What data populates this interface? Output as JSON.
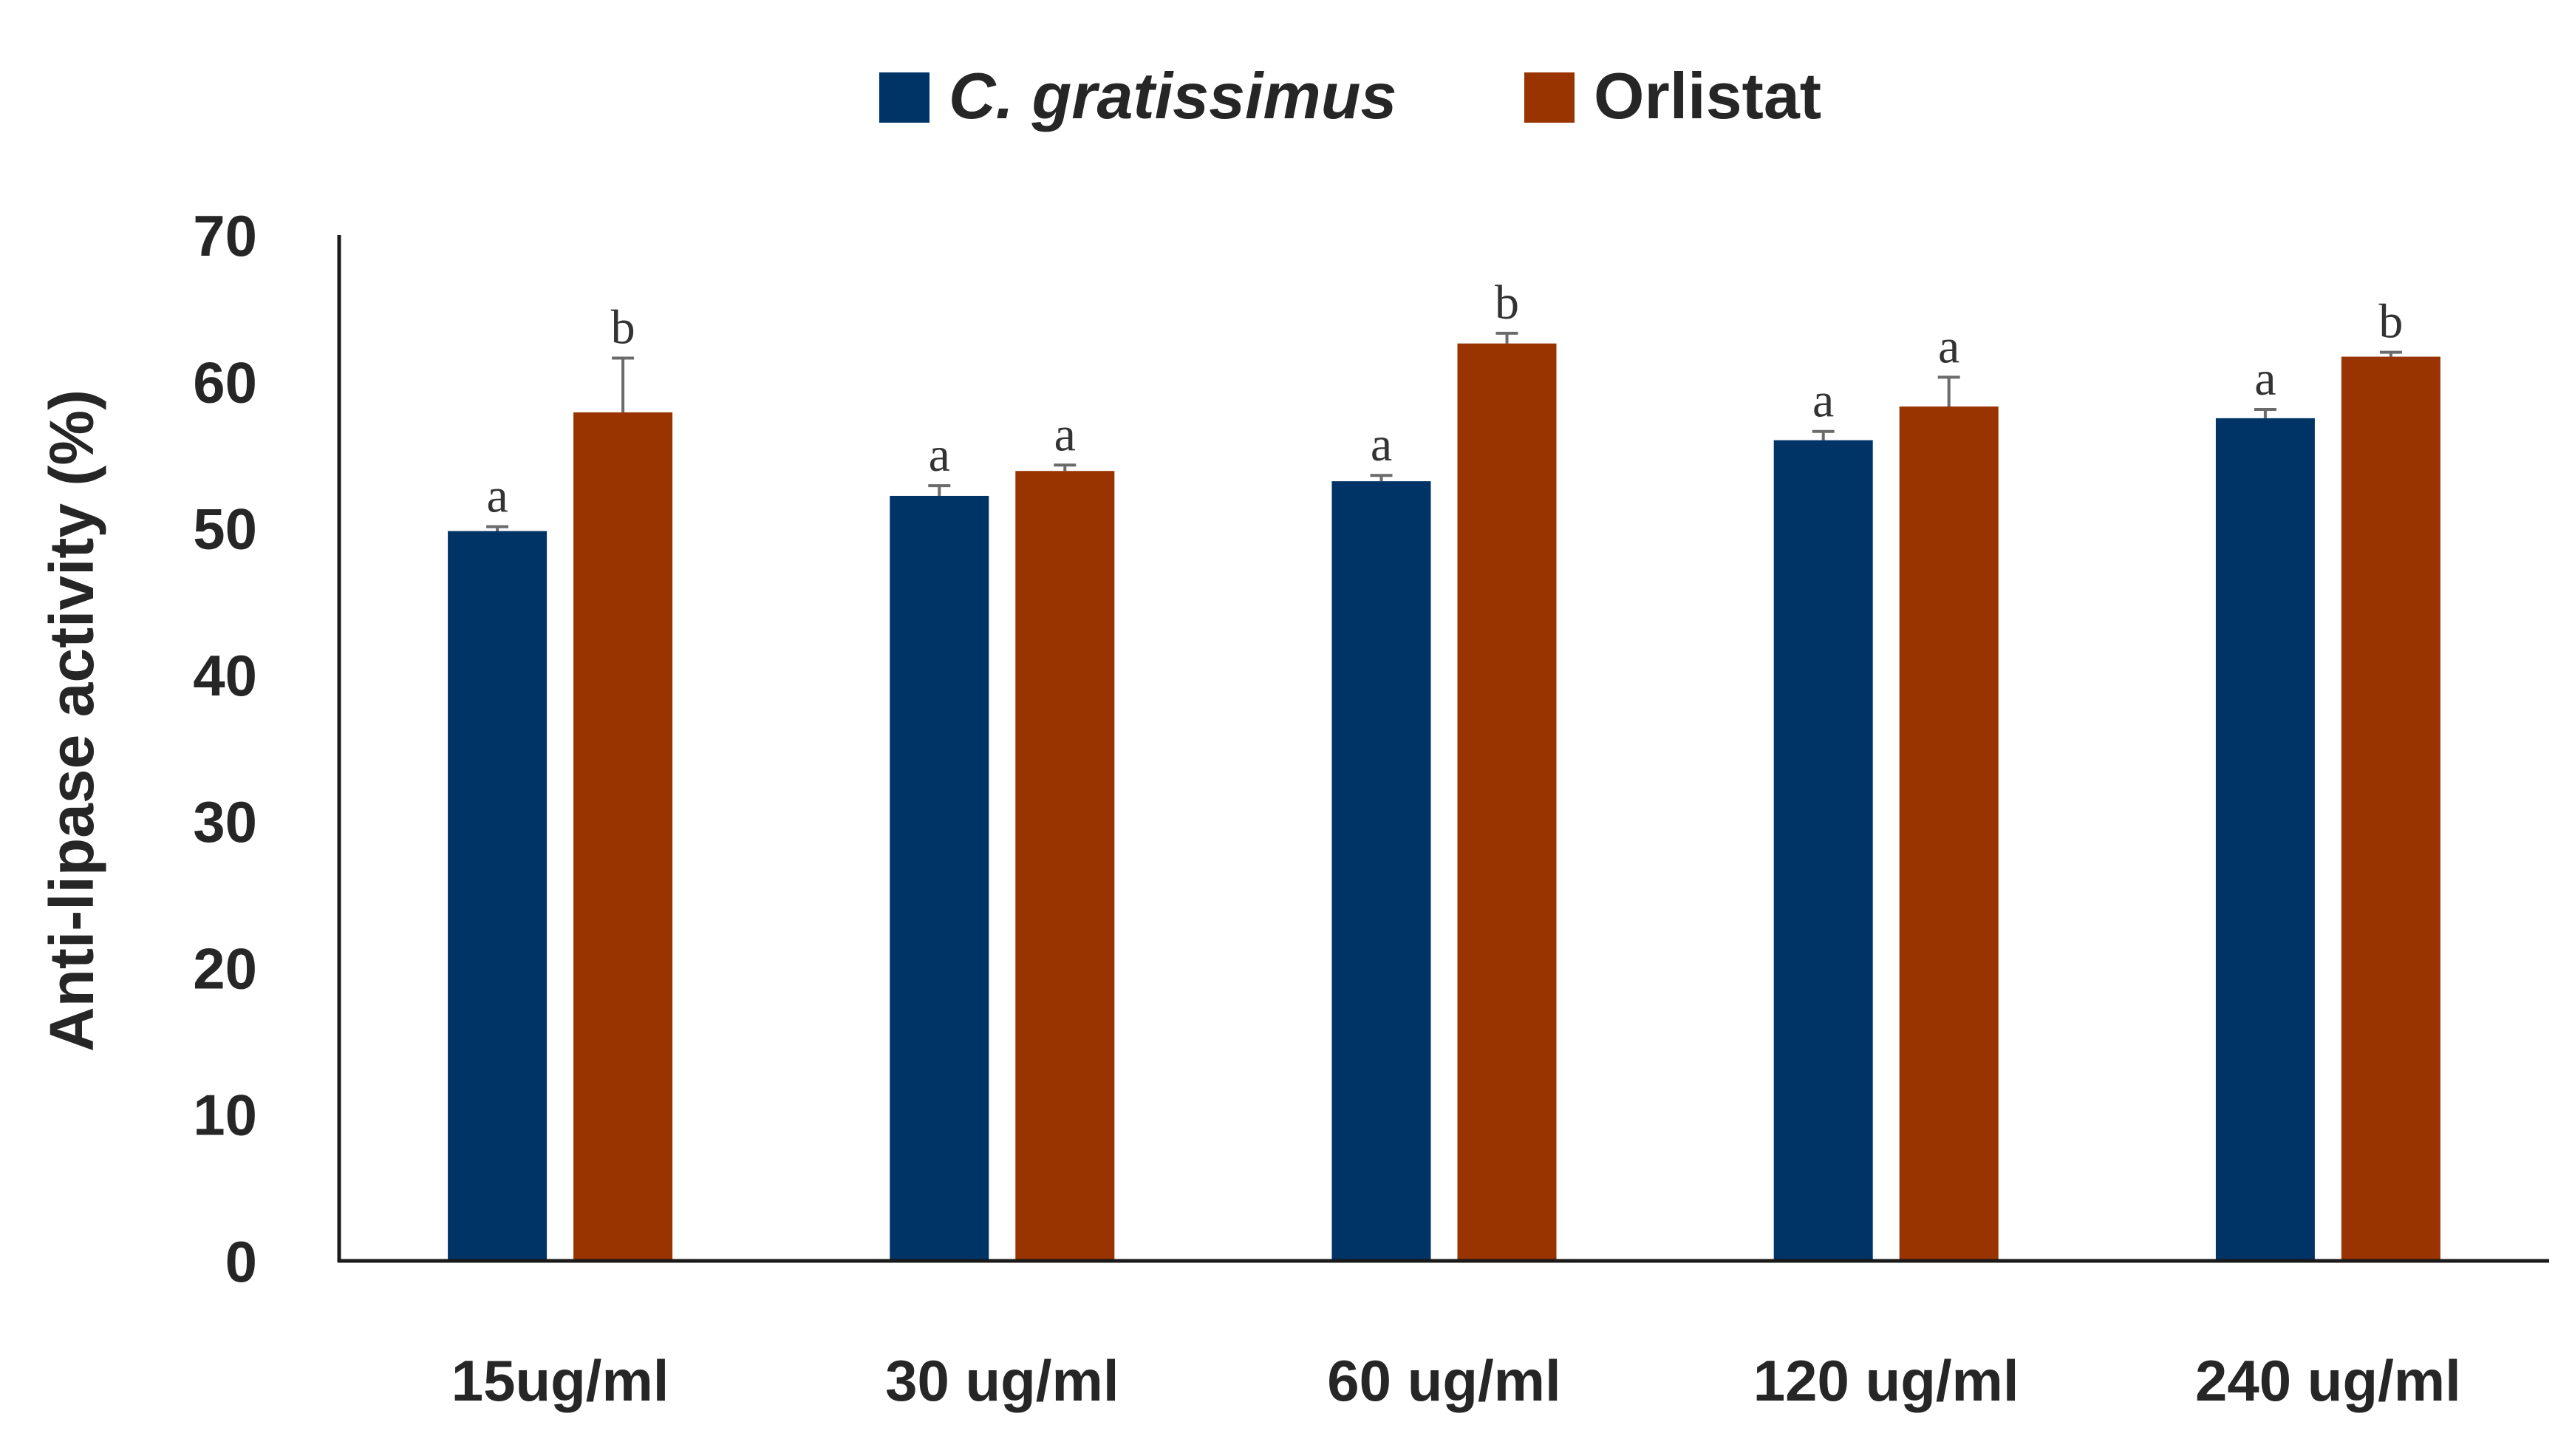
{
  "chart_data": {
    "type": "bar",
    "title": "",
    "xlabel": "",
    "ylabel": "Anti-lipase activity (%)",
    "ylim": [
      0,
      70
    ],
    "yticks": [
      0,
      10,
      20,
      30,
      40,
      50,
      60,
      70
    ],
    "grid": false,
    "legend_position": "top-center",
    "categories": [
      "15ug/ml",
      "30 ug/ml",
      "60 ug/ml",
      "120 ug/ml",
      "240 ug/ml"
    ],
    "series": [
      {
        "name": "C. gratissimus",
        "italic": true,
        "color": "#003366",
        "values": [
          49.8,
          52.2,
          53.2,
          56.0,
          57.5
        ],
        "errors": [
          0.3,
          0.7,
          0.4,
          0.6,
          0.6
        ],
        "letters": [
          "a",
          "a",
          "a",
          "a",
          "a"
        ]
      },
      {
        "name": "Orlistat",
        "italic": false,
        "color": "#993300",
        "values": [
          57.9,
          53.9,
          62.6,
          58.3,
          61.7
        ],
        "errors": [
          3.7,
          0.4,
          0.7,
          2.0,
          0.3
        ],
        "letters": [
          "b",
          "a",
          "b",
          "a",
          "b"
        ]
      }
    ]
  }
}
